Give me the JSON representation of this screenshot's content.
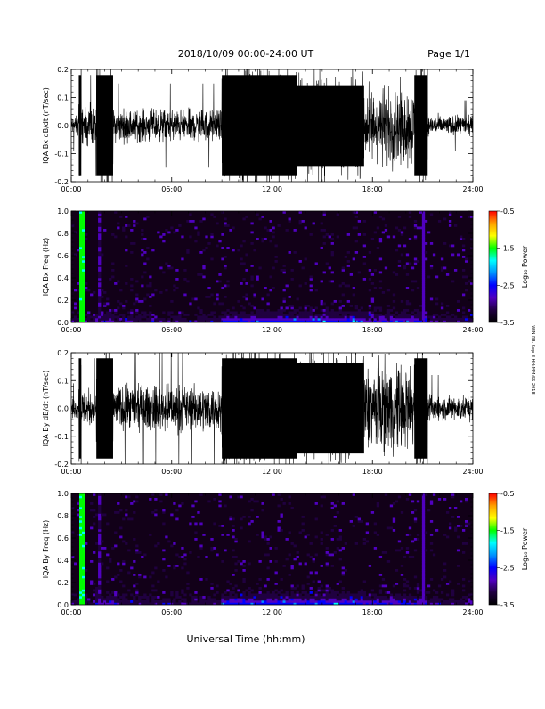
{
  "header": {
    "date_range": "2018/10/09   00:00-24:00 UT",
    "page": "Page 1/1"
  },
  "side_note": "WIN PB. Sep 8 HH:MM:SS 2018",
  "xaxis_title": "Universal Time (hh:mm)",
  "colorbar": {
    "ticks": [
      "-0.5",
      "-1.5",
      "-2.5",
      "-3.5"
    ],
    "label": "Log₁₀ Power",
    "colors": [
      "#ff0000",
      "#ffa000",
      "#ffff00",
      "#00ff00",
      "#00ffff",
      "#0090ff",
      "#0000ff",
      "#5000c0",
      "#200040",
      "#000000"
    ]
  },
  "chart_data": [
    {
      "type": "line",
      "ylabel": "IQA Bx dB/dt (nT/sec)",
      "xlim": [
        0,
        24
      ],
      "ylim": [
        -0.2,
        0.2
      ],
      "xticks": [
        "00:00",
        "06:00",
        "12:00",
        "18:00",
        "24:00"
      ],
      "yticks": [
        "0.2",
        "0.1",
        "0.0",
        "-0.1",
        "-0.2"
      ],
      "activity": [
        {
          "x": [
            0.0,
            0.45
          ],
          "amp": 0.03
        },
        {
          "x": [
            0.45,
            0.6
          ],
          "amp": 0.2
        },
        {
          "x": [
            0.6,
            1.5
          ],
          "amp": 0.06
        },
        {
          "x": [
            1.5,
            2.5
          ],
          "amp": 0.2
        },
        {
          "x": [
            2.5,
            9.0
          ],
          "amp": 0.05
        },
        {
          "x": [
            9.0,
            13.5
          ],
          "amp": 0.2
        },
        {
          "x": [
            13.5,
            17.5
          ],
          "amp": 0.16
        },
        {
          "x": [
            17.5,
            20.5
          ],
          "amp": 0.12
        },
        {
          "x": [
            20.5,
            21.3
          ],
          "amp": 0.2
        },
        {
          "x": [
            21.3,
            24.0
          ],
          "amp": 0.03
        }
      ]
    },
    {
      "type": "heatmap",
      "ylabel": "IQA Bx Freq (Hz)",
      "xlim": [
        0,
        24
      ],
      "ylim": [
        0,
        1
      ],
      "xticks": [
        "00:00",
        "06:00",
        "12:00",
        "18:00",
        "24:00"
      ],
      "yticks": [
        "1.0",
        "0.8",
        "0.6",
        "0.4",
        "0.2",
        "0.0"
      ],
      "zlim": [
        -3.5,
        -0.5
      ],
      "zlabel": "Log₁₀ Power",
      "broadband_bursts": [
        {
          "x": [
            0.5,
            0.85
          ],
          "level": -1.6
        },
        {
          "x": [
            1.6,
            1.75
          ],
          "level": -3.0
        },
        {
          "x": [
            20.9,
            21.1
          ],
          "level": -2.8
        }
      ],
      "low_freq_enhancement": [
        {
          "x": [
            0.0,
            0.5
          ],
          "level": -3.0
        },
        {
          "x": [
            1.5,
            2.5
          ],
          "level": -2.6
        },
        {
          "x": [
            9.0,
            17.5
          ],
          "level": -2.3
        },
        {
          "x": [
            17.5,
            21.3
          ],
          "level": -2.5
        },
        {
          "x": [
            21.3,
            24.0
          ],
          "level": -3.0
        }
      ]
    },
    {
      "type": "line",
      "ylabel": "IQA By dB/dt (nT/sec)",
      "xlim": [
        0,
        24
      ],
      "ylim": [
        -0.2,
        0.2
      ],
      "xticks": [
        "00:00",
        "06:00",
        "12:00",
        "18:00",
        "24:00"
      ],
      "yticks": [
        "0.2",
        "0.1",
        "0.0",
        "-0.1",
        "-0.2"
      ],
      "activity": [
        {
          "x": [
            0.0,
            0.45
          ],
          "amp": 0.03
        },
        {
          "x": [
            0.45,
            0.6
          ],
          "amp": 0.2
        },
        {
          "x": [
            0.6,
            1.5
          ],
          "amp": 0.06
        },
        {
          "x": [
            1.5,
            2.5
          ],
          "amp": 0.2
        },
        {
          "x": [
            2.5,
            9.0
          ],
          "amp": 0.07
        },
        {
          "x": [
            9.0,
            13.5
          ],
          "amp": 0.2
        },
        {
          "x": [
            13.5,
            17.5
          ],
          "amp": 0.18
        },
        {
          "x": [
            17.5,
            20.5
          ],
          "amp": 0.14
        },
        {
          "x": [
            20.5,
            21.3
          ],
          "amp": 0.2
        },
        {
          "x": [
            21.3,
            24.0
          ],
          "amp": 0.04
        }
      ]
    },
    {
      "type": "heatmap",
      "ylabel": "IQA By Freq (Hz)",
      "xlim": [
        0,
        24
      ],
      "ylim": [
        0,
        1
      ],
      "xticks": [
        "00:00",
        "06:00",
        "12:00",
        "18:00",
        "24:00"
      ],
      "yticks": [
        "1.0",
        "0.8",
        "0.6",
        "0.4",
        "0.2",
        "0.0"
      ],
      "zlim": [
        -3.5,
        -0.5
      ],
      "zlabel": "Log₁₀ Power",
      "broadband_bursts": [
        {
          "x": [
            0.5,
            0.85
          ],
          "level": -1.6
        },
        {
          "x": [
            1.6,
            1.75
          ],
          "level": -3.0
        },
        {
          "x": [
            20.9,
            21.1
          ],
          "level": -2.8
        }
      ],
      "low_freq_enhancement": [
        {
          "x": [
            0.0,
            0.5
          ],
          "level": -3.0
        },
        {
          "x": [
            1.5,
            2.5
          ],
          "level": -2.6
        },
        {
          "x": [
            9.0,
            17.5
          ],
          "level": -2.2
        },
        {
          "x": [
            17.5,
            21.3
          ],
          "level": -2.5
        },
        {
          "x": [
            21.3,
            24.0
          ],
          "level": -3.0
        }
      ]
    }
  ]
}
